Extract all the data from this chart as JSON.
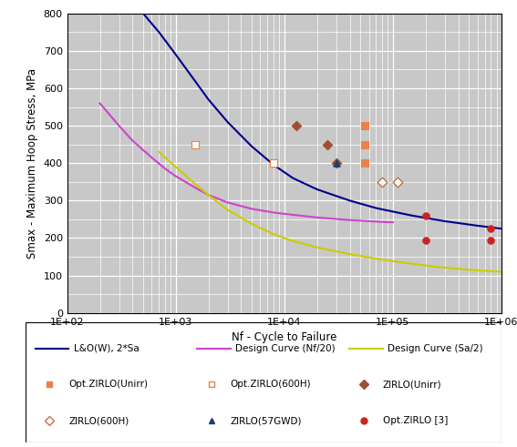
{
  "title": "",
  "xlabel": "Nf - Cycle to Failure",
  "ylabel": "Smax - Maximum Hoop Stress, MPa",
  "xlim": [
    100,
    1000000
  ],
  "ylim": [
    0,
    800
  ],
  "bg_color": "#c8c8c8",
  "curve_LO": {
    "label": "L&O(W), 2*Sa",
    "color": "#00008B",
    "x": [
      500,
      700,
      1000,
      1500,
      2000,
      3000,
      5000,
      8000,
      12000,
      20000,
      40000,
      70000,
      150000,
      300000,
      600000,
      1000000
    ],
    "y": [
      800,
      750,
      690,
      620,
      570,
      510,
      445,
      395,
      360,
      330,
      300,
      280,
      260,
      245,
      233,
      225
    ]
  },
  "curve_design_nf20": {
    "label": "Design Curve (Nf/20)",
    "color": "#CC44CC",
    "x": [
      200,
      300,
      400,
      600,
      800,
      1000,
      1500,
      2000,
      3000,
      5000,
      8000,
      12000,
      20000,
      40000,
      80000,
      100000
    ],
    "y": [
      560,
      500,
      460,
      415,
      385,
      365,
      335,
      315,
      295,
      278,
      268,
      262,
      255,
      248,
      243,
      242
    ]
  },
  "curve_design_sa2": {
    "label": "Design Curve (Sa/2)",
    "color": "#CCCC00",
    "x": [
      700,
      1000,
      1500,
      2000,
      3000,
      5000,
      8000,
      12000,
      20000,
      40000,
      70000,
      120000,
      250000,
      500000,
      1000000
    ],
    "y": [
      430,
      390,
      345,
      315,
      275,
      238,
      210,
      192,
      175,
      157,
      145,
      135,
      123,
      115,
      110
    ]
  },
  "scatter": {
    "opt_zirlo_unirr": {
      "label": "Opt.ZIRLO(Unirr)",
      "color": "#E8824A",
      "marker": "s",
      "filled": true,
      "points": [
        [
          8000,
          400
        ],
        [
          55000,
          500
        ],
        [
          55000,
          450
        ],
        [
          55000,
          400
        ]
      ]
    },
    "opt_zirlo_600H": {
      "label": "Opt.ZIRLO(600H)",
      "color": "#E8824A",
      "marker": "s",
      "filled": false,
      "points": [
        [
          1500,
          450
        ],
        [
          8000,
          400
        ]
      ]
    },
    "zirlo_unirr": {
      "label": "ZIRLO(Unirr)",
      "color": "#A05030",
      "marker": "D",
      "filled": true,
      "points": [
        [
          13000,
          500
        ],
        [
          25000,
          450
        ],
        [
          30000,
          400
        ],
        [
          80000,
          350
        ],
        [
          110000,
          350
        ]
      ]
    },
    "zirlo_600H": {
      "label": "ZIRLO(600H)",
      "color": "#C87040",
      "marker": "D",
      "filled": false,
      "points": [
        [
          80000,
          350
        ],
        [
          110000,
          350
        ]
      ]
    },
    "zirlo_57GWD": {
      "label": "ZIRLO(57GWD)",
      "color": "#1C3F6E",
      "marker": "^",
      "filled": true,
      "points": [
        [
          30000,
          400
        ]
      ]
    },
    "opt_zirlo_3": {
      "label": "Opt.ZIRLO [3]",
      "color": "#CC2222",
      "marker": "o",
      "filled": true,
      "points": [
        [
          200000,
          195
        ],
        [
          200000,
          260
        ],
        [
          800000,
          225
        ],
        [
          800000,
          195
        ]
      ]
    }
  },
  "legend_lines": [
    {
      "label": "L&O(W), 2*Sa",
      "color": "#00008B"
    },
    {
      "label": "Design Curve (Nf/20)",
      "color": "#CC44CC"
    },
    {
      "label": "Design Curve (Sa/2)",
      "color": "#CCCC00"
    }
  ],
  "legend_markers": [
    {
      "label": "Opt.ZIRLO(Unirr)",
      "color": "#E8824A",
      "marker": "s",
      "filled": true
    },
    {
      "label": "Opt.ZIRLO(600H)",
      "color": "#E8824A",
      "marker": "s",
      "filled": false
    },
    {
      "label": "ZIRLO(Unirr)",
      "color": "#A05030",
      "marker": "D",
      "filled": true
    },
    {
      "label": "ZIRLO(600H)",
      "color": "#C87040",
      "marker": "D",
      "filled": false
    },
    {
      "label": "ZIRLO(57GWD)",
      "color": "#1C3F6E",
      "marker": "^",
      "filled": true
    },
    {
      "label": "Opt.ZIRLO [3]",
      "color": "#CC2222",
      "marker": "o",
      "filled": true
    }
  ]
}
